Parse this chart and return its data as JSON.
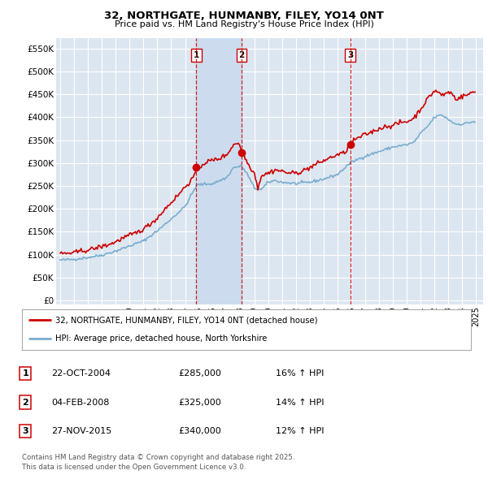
{
  "title": "32, NORTHGATE, HUNMANBY, FILEY, YO14 0NT",
  "subtitle": "Price paid vs. HM Land Registry's House Price Index (HPI)",
  "ytick_labels": [
    "£0",
    "£50K",
    "£100K",
    "£150K",
    "£200K",
    "£250K",
    "£300K",
    "£350K",
    "£400K",
    "£450K",
    "£500K",
    "£550K"
  ],
  "yticks": [
    0,
    50000,
    100000,
    150000,
    200000,
    250000,
    300000,
    350000,
    400000,
    450000,
    500000,
    550000
  ],
  "ylim": [
    -8000,
    572000
  ],
  "xlim_start": 1994.7,
  "xlim_end": 2025.5,
  "line1_color": "#cc0000",
  "line2_color": "#7aadcf",
  "background_color": "#ffffff",
  "plot_bg_color": "#dce6f1",
  "grid_color": "#ffffff",
  "shade_color": "#ccdcee",
  "vline_color": "#cc0000",
  "transactions": [
    {
      "label": "1",
      "date": 2004.81,
      "price": 285000,
      "date_str": "22-OCT-2004"
    },
    {
      "label": "2",
      "date": 2008.09,
      "price": 325000,
      "date_str": "04-FEB-2008"
    },
    {
      "label": "3",
      "date": 2015.91,
      "price": 340000,
      "date_str": "27-NOV-2015"
    }
  ],
  "legend_entry1": "32, NORTHGATE, HUNMANBY, FILEY, YO14 0NT (detached house)",
  "legend_entry2": "HPI: Average price, detached house, North Yorkshire",
  "footer": "Contains HM Land Registry data © Crown copyright and database right 2025.\nThis data is licensed under the Open Government Licence v3.0.",
  "table_rows": [
    {
      "num": "1",
      "date": "22-OCT-2004",
      "price": "£285,000",
      "pct": "16% ↑ HPI"
    },
    {
      "num": "2",
      "date": "04-FEB-2008",
      "price": "£325,000",
      "pct": "14% ↑ HPI"
    },
    {
      "num": "3",
      "date": "27-NOV-2015",
      "price": "£340,000",
      "pct": "12% ↑ HPI"
    }
  ]
}
